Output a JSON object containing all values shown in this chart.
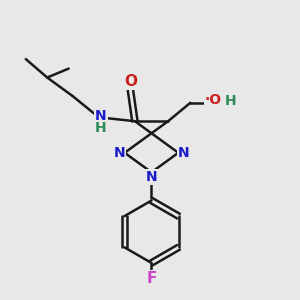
{
  "bg_color": "#e8e8e8",
  "bond_color": "#1a1a1a",
  "bond_width": 1.8,
  "atom_colors": {
    "N": "#1a1acc",
    "O": "#cc2020",
    "F": "#cc44cc",
    "H_green": "#2e8b57",
    "C": "#1a1a1a"
  },
  "font_size": 11,
  "fig_size": [
    3.0,
    3.0
  ],
  "dpi": 100,
  "xlim": [
    0,
    10
  ],
  "ylim": [
    0,
    10
  ]
}
